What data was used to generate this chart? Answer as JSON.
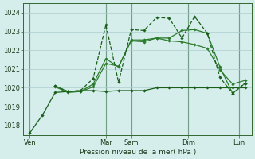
{
  "title": "",
  "xlabel": "Pression niveau de la mer( hPa )",
  "bg_color": "#d5eeec",
  "grid_color": "#aacccc",
  "ylim": [
    1017.5,
    1024.5
  ],
  "xlim": [
    0,
    18
  ],
  "day_labels": [
    "Ven",
    "Mar",
    "Sam",
    "Dim",
    "Lun"
  ],
  "day_positions": [
    0.5,
    6.5,
    8.5,
    13.0,
    17.0
  ],
  "vline_positions": [
    0.5,
    6.5,
    8.5,
    13.0,
    17.0
  ],
  "num_x_minor": 18,
  "series": [
    {
      "x": [
        0.5,
        1.5,
        2.5,
        3.5,
        4.5,
        5.5,
        6.5,
        7.5,
        8.5,
        9.5,
        10.5,
        11.5,
        12.5,
        13.5,
        14.5,
        15.5,
        16.5,
        17.5
      ],
      "y": [
        1017.6,
        1018.55,
        1019.75,
        1019.8,
        1019.85,
        1019.85,
        1019.8,
        1019.85,
        1019.85,
        1019.85,
        1020.0,
        1020.0,
        1020.0,
        1020.0,
        1020.0,
        1020.0,
        1020.0,
        1020.0
      ],
      "color": "#1a5e1a",
      "lw": 0.9,
      "marker": "D",
      "ms": 1.8,
      "ls": "-"
    },
    {
      "x": [
        2.5,
        3.5,
        4.5,
        5.5,
        6.5,
        7.5,
        8.5,
        9.5,
        10.5,
        11.5,
        12.5,
        13.5,
        14.5,
        15.5,
        16.5,
        17.5
      ],
      "y": [
        1020.05,
        1019.75,
        1019.8,
        1020.05,
        1021.3,
        1021.15,
        1022.5,
        1022.45,
        1022.65,
        1022.5,
        1022.45,
        1022.3,
        1022.1,
        1020.95,
        1020.2,
        1020.4
      ],
      "color": "#2e7d2e",
      "lw": 0.9,
      "marker": "D",
      "ms": 1.8,
      "ls": "-"
    },
    {
      "x": [
        2.5,
        3.5,
        4.5,
        5.5,
        6.5,
        7.5,
        8.5,
        9.5,
        10.5,
        11.5,
        12.5,
        13.5,
        14.5,
        15.5,
        16.5,
        17.5
      ],
      "y": [
        1020.1,
        1019.8,
        1019.8,
        1020.2,
        1021.55,
        1021.1,
        1022.55,
        1022.55,
        1022.65,
        1022.65,
        1023.05,
        1023.1,
        1022.9,
        1021.1,
        1019.7,
        1020.25
      ],
      "color": "#2a7a2a",
      "lw": 0.9,
      "marker": "D",
      "ms": 1.8,
      "ls": "-"
    },
    {
      "x": [
        2.5,
        3.5,
        4.5,
        5.5,
        6.5,
        7.5,
        8.5,
        9.5,
        10.5,
        11.5,
        12.5,
        13.5,
        14.5,
        15.5,
        16.5,
        17.5
      ],
      "y": [
        1020.1,
        1019.8,
        1019.85,
        1020.5,
        1023.35,
        1020.3,
        1023.1,
        1023.05,
        1023.75,
        1023.7,
        1022.65,
        1023.8,
        1022.9,
        1020.55,
        1019.7,
        1020.25
      ],
      "color": "#1a5e1a",
      "lw": 0.9,
      "marker": "D",
      "ms": 1.8,
      "ls": "--"
    }
  ],
  "yticks": [
    1018,
    1019,
    1020,
    1021,
    1022,
    1023,
    1024
  ]
}
